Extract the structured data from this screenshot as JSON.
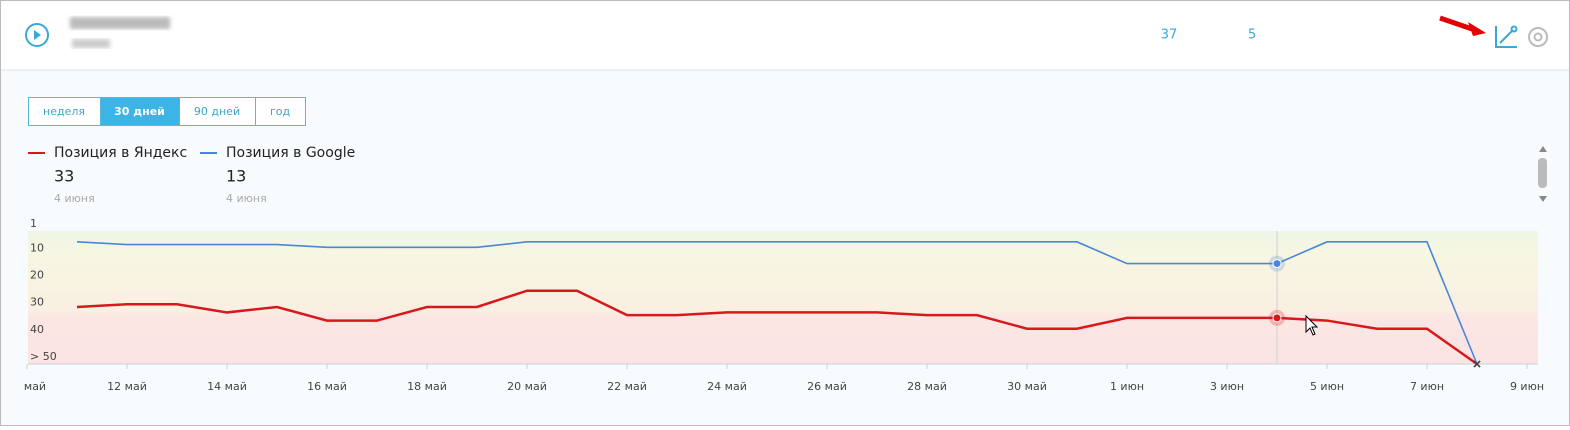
{
  "header": {
    "stats": [
      "37",
      "5"
    ]
  },
  "tabs": [
    "неделя",
    "30 дней",
    "90 дней",
    "год"
  ],
  "active_tab": 1,
  "chart_data": {
    "type": "line",
    "y_inverted": true,
    "highlight_index": 25,
    "categories": [
      "май",
      null,
      "12 май",
      null,
      "14 май",
      null,
      "16 май",
      null,
      "18 май",
      null,
      "20 май",
      null,
      "22 май",
      null,
      "24 май",
      null,
      "26 май",
      null,
      "28 май",
      null,
      "30 май",
      null,
      "1 июн",
      null,
      "3 июн",
      null,
      "5 июн",
      null,
      "7 июн",
      null,
      "9 июн"
    ],
    "series": [
      {
        "name": "Позиция в Яндекс",
        "color": "#d7191c",
        "current": 33,
        "current_date": "4 июня",
        "values": [
          null,
          29,
          28,
          28,
          31,
          29,
          34,
          34,
          29,
          29,
          23,
          23,
          32,
          32,
          31,
          31,
          31,
          31,
          32,
          32,
          37,
          37,
          33,
          33,
          33,
          33,
          34,
          37,
          37,
          50,
          null
        ]
      },
      {
        "name": "Позиция в Google",
        "color": "#4a86d4",
        "current": 13,
        "current_date": "4 июня",
        "values": [
          null,
          5,
          6,
          6,
          6,
          6,
          7,
          7,
          7,
          7,
          5,
          5,
          5,
          5,
          5,
          5,
          5,
          5,
          5,
          5,
          5,
          5,
          13,
          13,
          13,
          13,
          5,
          5,
          5,
          50,
          null
        ]
      }
    ],
    "ylim": [
      1,
      50
    ],
    "yticks": [
      1,
      10,
      20,
      30,
      40,
      {
        "value": 50,
        "label": "> 50"
      }
    ]
  }
}
